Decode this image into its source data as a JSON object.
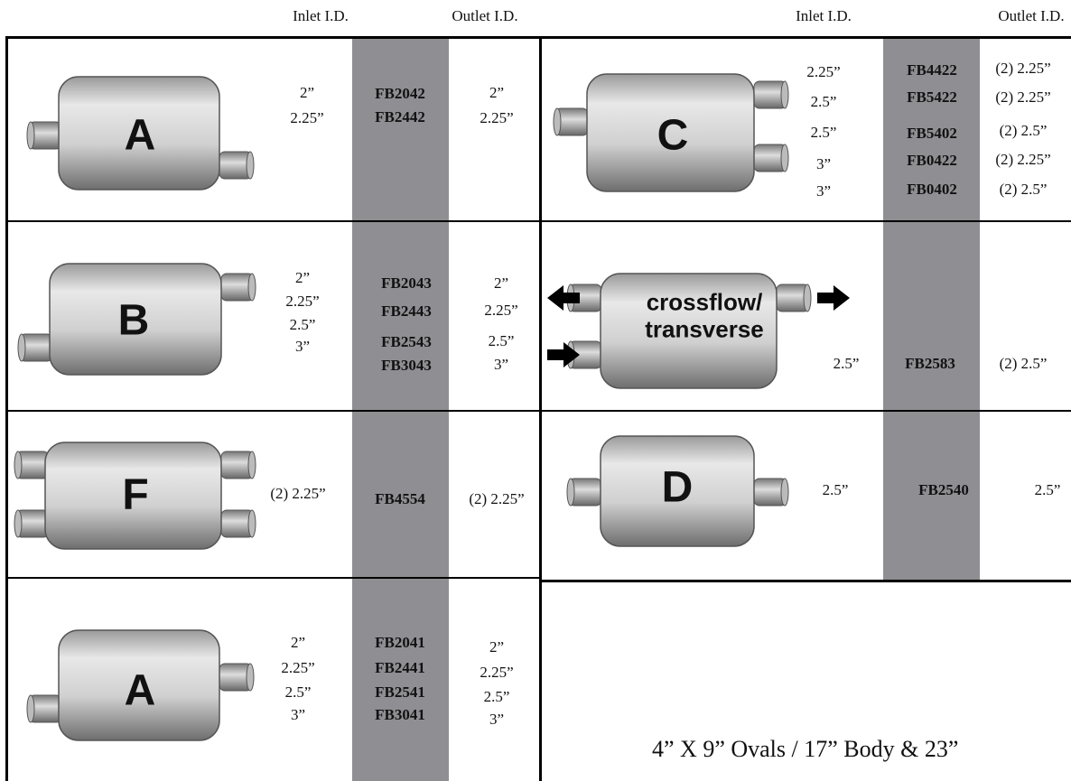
{
  "header": {
    "left_inlet": "Inlet I.D.",
    "left_outlet": "Outlet I.D.",
    "right_inlet": "Inlet I.D.",
    "right_outlet": "Outlet I.D."
  },
  "left": {
    "rows": [
      {
        "label": [
          "A"
        ],
        "inlet": [
          "2”",
          "2.25”"
        ],
        "parts": [
          "FB2042",
          "FB2442"
        ],
        "outlet": [
          "2”",
          "2.25”"
        ]
      },
      {
        "label": [
          "B"
        ],
        "inlet": [
          "2”",
          "2.25”",
          "2.5”",
          "3”"
        ],
        "parts": [
          "FB2043",
          "FB2443",
          "FB2543",
          "FB3043"
        ],
        "outlet": [
          "2”",
          "2.25”",
          "2.5”",
          "3”"
        ]
      },
      {
        "label": [
          "F"
        ],
        "inlet": [
          "(2) 2.25”"
        ],
        "parts": [
          "FB4554"
        ],
        "outlet": [
          "(2) 2.25”"
        ]
      },
      {
        "label": [
          "A"
        ],
        "inlet": [
          "2”",
          "2.25”",
          "2.5”",
          "3”"
        ],
        "parts": [
          "FB2041",
          "FB2441",
          "FB2541",
          "FB3041"
        ],
        "outlet": [
          "2”",
          "2.25”",
          "2.5”",
          "3”"
        ]
      }
    ]
  },
  "right": {
    "rows": [
      {
        "label": [
          "C"
        ],
        "inlet": [
          "2.25”",
          "2.5”",
          "2.5”",
          "3”",
          "3”"
        ],
        "parts": [
          "FB4422",
          "FB5422",
          "FB5402",
          "FB0422",
          "FB0402"
        ],
        "outlet": [
          "(2) 2.25”",
          "(2) 2.25”",
          "(2) 2.5”",
          "(2) 2.25”",
          "(2) 2.5”"
        ]
      },
      {
        "label": [
          "crossflow/",
          "transverse"
        ],
        "inlet": [
          "2.5”"
        ],
        "parts": [
          "FB2583"
        ],
        "outlet": [
          "(2) 2.5”"
        ]
      },
      {
        "label": [
          "D"
        ],
        "inlet": [
          "2.5”"
        ],
        "parts": [
          "FB2540"
        ],
        "outlet": [
          "2.5”"
        ]
      }
    ]
  },
  "footer": "4” X 9” Ovals /  17” Body & 23”"
}
